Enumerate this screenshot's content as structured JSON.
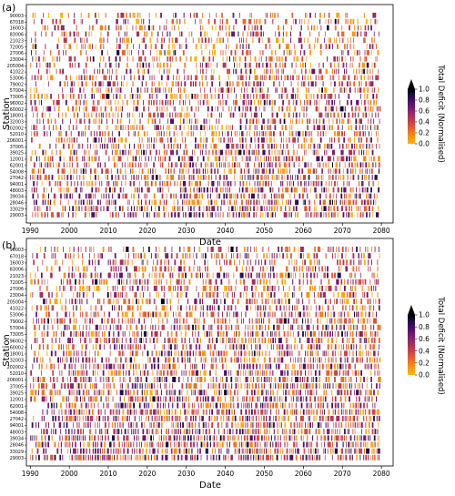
{
  "chart_data": [
    {
      "panel": "(a)",
      "type": "heatmap",
      "xlabel": "Date",
      "ylabel": "Station",
      "xlim": [
        1989,
        2083
      ],
      "x_ticks": [
        1990,
        2000,
        2010,
        2020,
        2030,
        2040,
        2050,
        2060,
        2070,
        2080
      ],
      "stations": [
        "90003",
        "67018",
        "16003",
        "83006",
        "21023",
        "72005",
        "27006",
        "23004",
        "205004",
        "41022",
        "53006",
        "79002",
        "57004",
        "73005",
        "96002",
        "60002",
        "18001",
        "32003",
        "202002",
        "52010",
        "206001",
        "37005",
        "39025",
        "12001",
        "62001",
        "54008",
        "27042",
        "94001",
        "48003",
        "39034",
        "28046",
        "33029",
        "29003"
      ],
      "colorbar": {
        "label": "Total Deficit (Normalised)",
        "range": [
          0,
          1
        ],
        "ticks": [
          "0.0",
          "0.2",
          "0.4",
          "0.6",
          "0.8",
          "1.0"
        ],
        "colormap": "inferno-r",
        "extend": "max"
      },
      "value_range": [
        0,
        1
      ],
      "intensity": 0.8,
      "seed": 11
    },
    {
      "panel": "(b)",
      "type": "heatmap",
      "xlabel": "Date",
      "ylabel": "Station",
      "xlim": [
        1989,
        2083
      ],
      "x_ticks": [
        1990,
        2000,
        2010,
        2020,
        2030,
        2040,
        2050,
        2060,
        2070,
        2080
      ],
      "stations": [
        "90003",
        "67018",
        "16003",
        "83006",
        "21023",
        "72005",
        "27006",
        "23004",
        "205004",
        "41022",
        "53006",
        "79002",
        "57004",
        "73005",
        "96002",
        "60002",
        "18001",
        "32003",
        "202002",
        "52010",
        "206001",
        "37005",
        "39025",
        "12001",
        "62001",
        "54008",
        "27042",
        "94001",
        "48003",
        "39034",
        "28046",
        "33029",
        "29003"
      ],
      "colorbar": {
        "label": "Total Deficit (Normalised)",
        "range": [
          0,
          1
        ],
        "ticks": [
          "0.0",
          "0.2",
          "0.4",
          "0.6",
          "0.8",
          "1.0"
        ],
        "colormap": "inferno-r",
        "extend": "max"
      },
      "value_range": [
        0,
        1
      ],
      "intensity": 1.0,
      "seed": 29
    }
  ]
}
